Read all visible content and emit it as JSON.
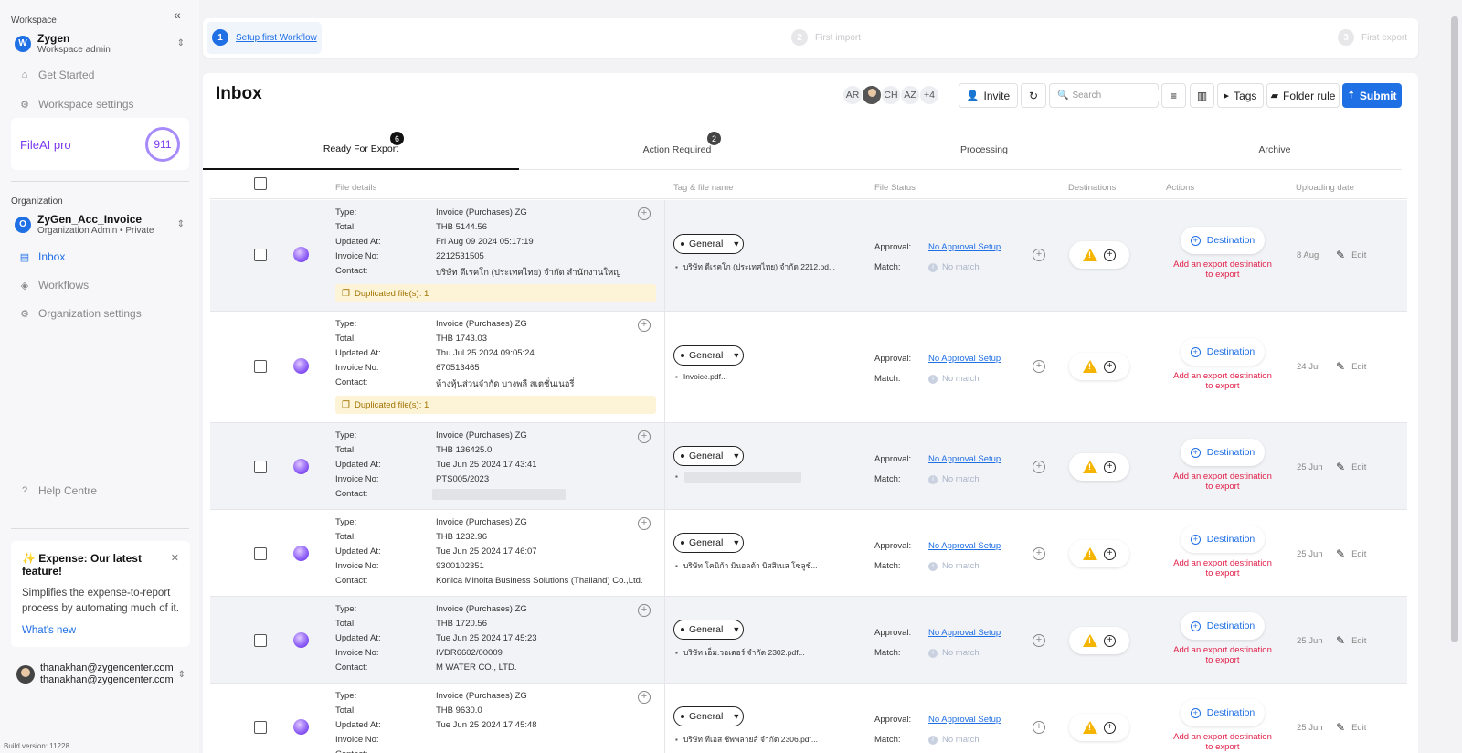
{
  "sidebar": {
    "workspace_label": "Workspace",
    "workspace": {
      "initial": "W",
      "name": "Zygen",
      "role": "Workspace admin"
    },
    "nav_top": [
      {
        "label": "Get Started",
        "icon": "home-icon"
      },
      {
        "label": "Workspace settings",
        "icon": "gear-icon"
      }
    ],
    "pro": {
      "label": "FileAI pro",
      "count": "911"
    },
    "organization_label": "Organization",
    "organization": {
      "initial": "O",
      "name": "ZyGen_Acc_Invoice",
      "role": "Organization Admin • Private"
    },
    "nav_org": [
      {
        "label": "Inbox",
        "icon": "inbox-icon",
        "active": true
      },
      {
        "label": "Workflows",
        "icon": "layers-icon"
      },
      {
        "label": "Organization settings",
        "icon": "gear-icon"
      }
    ],
    "help": "Help Centre",
    "feature": {
      "title": "✨ Expense: Our latest feature!",
      "desc": "Simplifies the expense-to-report process by automating much of it.",
      "link": "What's new"
    },
    "user": {
      "email1": "thanakhan@zygencenter.com",
      "email2": "thanakhan@zygencenter.com"
    },
    "build": "Build version: 11228"
  },
  "stepper": {
    "steps": [
      {
        "num": "1",
        "label": "Setup first Workflow"
      },
      {
        "num": "2",
        "label": "First import"
      },
      {
        "num": "3",
        "label": "First export"
      }
    ]
  },
  "header": {
    "title": "Inbox",
    "avatars": [
      "AR",
      "CH",
      "AZ",
      "+4"
    ],
    "invite": "Invite",
    "search_placeholder": "Search",
    "tags": "Tags",
    "folder_rule": "Folder rule",
    "submit": "Submit"
  },
  "tabs": [
    {
      "label": "Ready For Export",
      "badge": "6"
    },
    {
      "label": "Action Required",
      "badge": "2"
    },
    {
      "label": "Processing",
      "badge": ""
    },
    {
      "label": "Archive",
      "badge": ""
    }
  ],
  "columns": {
    "file_details": "File details",
    "tag_file": "Tag & file name",
    "file_status": "File Status",
    "destinations": "Destinations",
    "actions": "Actions",
    "uploading_date": "Uploading date"
  },
  "labels": {
    "type": "Type:",
    "total": "Total:",
    "updated": "Updated At:",
    "invoice_no": "Invoice No:",
    "contact": "Contact:",
    "tag": "General",
    "approval": "Approval:",
    "match": "Match:",
    "no_approval": "No Approval Setup",
    "no_match": "No match",
    "destination": "Destination",
    "dest_error": "Add an export destination to export",
    "edit": "Edit"
  },
  "rows": [
    {
      "type": "Invoice (Purchases) ZG",
      "total": "THB 5144.56",
      "updated": "Fri Aug 09 2024 05:17:19",
      "invoice_no": "2212531505",
      "contact": "บริษัท ดีเรคโก (ประเทศไทย) จำกัด สำนักงานใหญ่",
      "duplicate": "Duplicated file(s): 1",
      "filename": "บริษัท ดีเรคโก (ประเทศไทย) จำกัด 2212.pd...",
      "date": "8 Aug"
    },
    {
      "type": "Invoice (Purchases) ZG",
      "total": "THB 1743.03",
      "updated": "Thu Jul 25 2024 09:05:24",
      "invoice_no": "670513465",
      "contact": "ห้างหุ้นส่วนจำกัด บางพลี สเตชั่นเนอรี่",
      "duplicate": "Duplicated file(s): 1",
      "filename": "Invoice.pdf...",
      "date": "24 Jul"
    },
    {
      "type": "Invoice (Purchases) ZG",
      "total": "THB 136425.0",
      "updated": "Tue Jun 25 2024 17:43:41",
      "invoice_no": "PTS005/2023",
      "contact": "",
      "duplicate": "",
      "filename": "",
      "date": "25 Jun"
    },
    {
      "type": "Invoice (Purchases) ZG",
      "total": "THB 1232.96",
      "updated": "Tue Jun 25 2024 17:46:07",
      "invoice_no": "9300102351",
      "contact": "Konica Minolta Business Solutions (Thailand) Co.,Ltd.",
      "duplicate": "",
      "filename": "บริษัท โคนิก้า มินอลต้า บิสสิเนส โซลูชั่...",
      "date": "25 Jun"
    },
    {
      "type": "Invoice (Purchases) ZG",
      "total": "THB 1720.56",
      "updated": "Tue Jun 25 2024 17:45:23",
      "invoice_no": "IVDR6602/00009",
      "contact": "M WATER CO., LTD.",
      "duplicate": "",
      "filename": "บริษัท เอ็ม.วอเตอร์ จำกัด 2302.pdf...",
      "date": "25 Jun"
    },
    {
      "type": "Invoice (Purchases) ZG",
      "total": "THB 9630.0",
      "updated": "Tue Jun 25 2024 17:45:48",
      "invoice_no": "",
      "contact": "",
      "duplicate": "",
      "filename": "บริษัท ทีเอส ซัพพลายส์ จำกัด 2306.pdf...",
      "date": "25 Jun"
    }
  ]
}
